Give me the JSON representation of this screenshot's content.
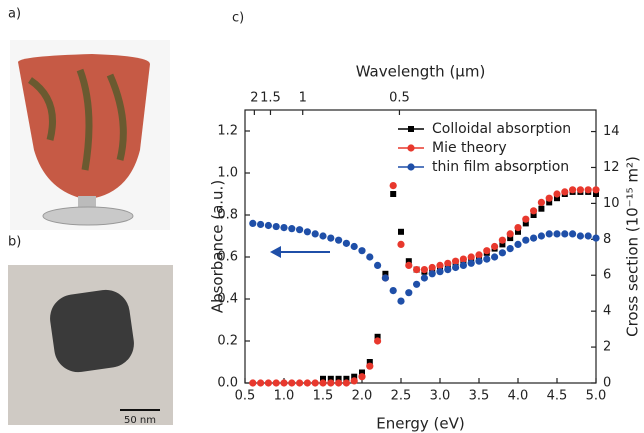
{
  "panel_labels": [
    "a)",
    "b)"
  ],
  "scale_bar": "50 nm",
  "chart_data": {
    "type": "scatter",
    "panel_label": "c)",
    "xlabel": "Energy (eV)",
    "ylabel": "Absorbance (a.u.)",
    "y2label": "Cross section (10⁻¹⁵ m²)",
    "x2label": "Wavelength (μm)",
    "xlim": [
      0.5,
      5.0
    ],
    "xticks": [
      0.5,
      {
        "value": 1,
        "label": "1.0"
      },
      1.5,
      {
        "value": 2,
        "label": "2.0"
      },
      2.5,
      {
        "value": 3,
        "label": "3.0"
      },
      3.5,
      {
        "value": 4,
        "label": "4.0"
      },
      4.5,
      {
        "value": 5,
        "label": "5.0"
      }
    ],
    "ylim": [
      0,
      1.3
    ],
    "yticks": [
      {
        "value": 0,
        "label": "0.0"
      },
      0.2,
      0.4,
      0.6,
      0.8,
      {
        "value": 1,
        "label": "1.0"
      },
      1.2
    ],
    "y2lim": [
      0,
      15.2
    ],
    "y2ticks": [
      0,
      2,
      4,
      6,
      8,
      10,
      12,
      14
    ],
    "x2ticks": [
      2,
      1.5,
      1,
      0.5
    ],
    "legend": "upper right",
    "series": [
      {
        "name": "Colloidal absorption",
        "color": "#000000",
        "marker": "square",
        "x": [
          1.5,
          1.6,
          1.7,
          1.8,
          1.9,
          2.0,
          2.1,
          2.2,
          2.3,
          2.4,
          2.5,
          2.6,
          2.7,
          2.8,
          2.9,
          3.0,
          3.1,
          3.2,
          3.3,
          3.4,
          3.5,
          3.6,
          3.7,
          3.8,
          3.9,
          4.0,
          4.1,
          4.2,
          4.3,
          4.4,
          4.5,
          4.6,
          4.7,
          4.8,
          4.9,
          5.0
        ],
        "values": [
          0.02,
          0.02,
          0.02,
          0.02,
          0.03,
          0.05,
          0.1,
          0.22,
          0.52,
          0.9,
          0.72,
          0.58,
          0.54,
          0.53,
          0.54,
          0.55,
          0.56,
          0.57,
          0.58,
          0.59,
          0.6,
          0.62,
          0.64,
          0.66,
          0.69,
          0.72,
          0.76,
          0.8,
          0.83,
          0.86,
          0.88,
          0.9,
          0.91,
          0.91,
          0.91,
          0.9
        ]
      },
      {
        "name": "Mie theory",
        "color": "#e8382d",
        "marker": "circle",
        "x": [
          0.6,
          0.7,
          0.8,
          0.9,
          1.0,
          1.1,
          1.2,
          1.3,
          1.4,
          1.5,
          1.6,
          1.7,
          1.8,
          1.9,
          2.0,
          2.1,
          2.2,
          2.3,
          2.4,
          2.5,
          2.6,
          2.7,
          2.8,
          2.9,
          3.0,
          3.1,
          3.2,
          3.3,
          3.4,
          3.5,
          3.6,
          3.7,
          3.8,
          3.9,
          4.0,
          4.1,
          4.2,
          4.3,
          4.4,
          4.5,
          4.6,
          4.7,
          4.8,
          4.9,
          5.0
        ],
        "values": [
          0,
          0,
          0,
          0,
          0,
          0,
          0,
          0,
          0,
          0,
          0,
          0,
          0,
          0.01,
          0.03,
          0.08,
          0.2,
          0.5,
          0.94,
          0.66,
          0.56,
          0.54,
          0.54,
          0.55,
          0.56,
          0.57,
          0.58,
          0.59,
          0.6,
          0.61,
          0.63,
          0.65,
          0.68,
          0.71,
          0.74,
          0.78,
          0.82,
          0.86,
          0.88,
          0.9,
          0.91,
          0.92,
          0.92,
          0.92,
          0.92
        ]
      },
      {
        "name": "thin film absorption",
        "color": "#1f4fa8",
        "marker": "circle",
        "x": [
          0.6,
          0.7,
          0.8,
          0.9,
          1.0,
          1.1,
          1.2,
          1.3,
          1.4,
          1.5,
          1.6,
          1.7,
          1.8,
          1.9,
          2.0,
          2.1,
          2.2,
          2.3,
          2.4,
          2.5,
          2.6,
          2.7,
          2.8,
          2.9,
          3.0,
          3.1,
          3.2,
          3.3,
          3.4,
          3.5,
          3.6,
          3.7,
          3.8,
          3.9,
          4.0,
          4.1,
          4.2,
          4.3,
          4.4,
          4.5,
          4.6,
          4.7,
          4.8,
          4.9,
          5.0
        ],
        "values": [
          0.76,
          0.755,
          0.75,
          0.745,
          0.74,
          0.735,
          0.73,
          0.72,
          0.71,
          0.7,
          0.69,
          0.68,
          0.665,
          0.65,
          0.63,
          0.6,
          0.56,
          0.5,
          0.44,
          0.39,
          0.43,
          0.47,
          0.5,
          0.52,
          0.53,
          0.54,
          0.55,
          0.56,
          0.57,
          0.58,
          0.59,
          0.6,
          0.62,
          0.64,
          0.66,
          0.68,
          0.69,
          0.7,
          0.71,
          0.71,
          0.71,
          0.71,
          0.7,
          0.7,
          0.69
        ]
      }
    ]
  }
}
